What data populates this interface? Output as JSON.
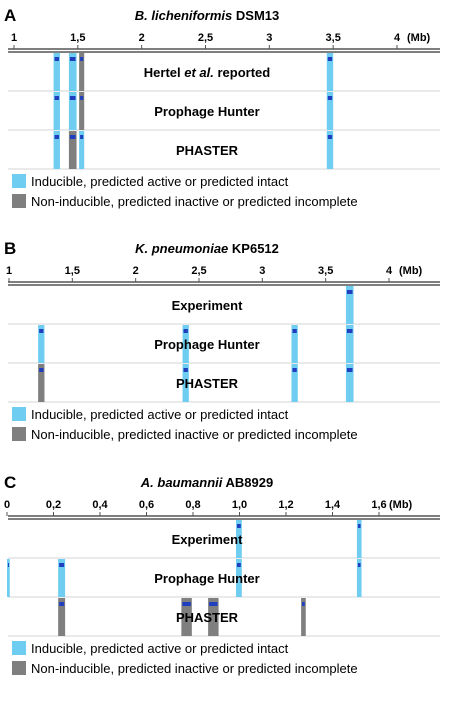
{
  "colors": {
    "inducible": "#6fcdf2",
    "noninducible": "#7f7f7f",
    "marker": "#1f3fbf",
    "axis": "#555555",
    "row_divider": "#d6d6d6"
  },
  "panels": [
    {
      "letter": "A",
      "title_italic": "B. licheniformis",
      "title_rest": " DSM13",
      "unit": "(Mb)",
      "axis": {
        "min": 1,
        "max": 4
      },
      "ticks": [
        {
          "value": 1,
          "label": "1"
        },
        {
          "value": 1.5,
          "label": "1,5"
        },
        {
          "value": 2,
          "label": "2"
        },
        {
          "value": 2.5,
          "label": "2,5"
        },
        {
          "value": 3,
          "label": "3"
        },
        {
          "value": 3.5,
          "label": "3,5"
        },
        {
          "value": 4,
          "label": "4"
        }
      ],
      "rows": [
        {
          "label_parts": [
            {
              "text": "Hertel ",
              "italic": false
            },
            {
              "text": "et al.",
              "italic": true
            },
            {
              "text": " reported",
              "italic": false
            }
          ],
          "bars": [
            {
              "start": 1.31,
              "end": 1.36,
              "type": "inducible"
            },
            {
              "start": 1.43,
              "end": 1.49,
              "type": "inducible"
            },
            {
              "start": 1.51,
              "end": 1.55,
              "type": "noninducible"
            },
            {
              "start": 3.45,
              "end": 3.5,
              "type": "inducible"
            }
          ]
        },
        {
          "label_parts": [
            {
              "text": "Prophage Hunter",
              "italic": false
            }
          ],
          "bars": [
            {
              "start": 1.31,
              "end": 1.36,
              "type": "inducible"
            },
            {
              "start": 1.43,
              "end": 1.49,
              "type": "inducible"
            },
            {
              "start": 1.51,
              "end": 1.55,
              "type": "noninducible"
            },
            {
              "start": 3.45,
              "end": 3.5,
              "type": "inducible"
            }
          ]
        },
        {
          "label_parts": [
            {
              "text": "PHASTER",
              "italic": false
            }
          ],
          "bars": [
            {
              "start": 1.31,
              "end": 1.36,
              "type": "inducible"
            },
            {
              "start": 1.43,
              "end": 1.49,
              "type": "noninducible"
            },
            {
              "start": 1.51,
              "end": 1.55,
              "type": "inducible"
            },
            {
              "start": 3.45,
              "end": 3.5,
              "type": "inducible"
            }
          ]
        }
      ],
      "legend": [
        {
          "type": "inducible",
          "text": "Inducible, predicted active or predicted intact"
        },
        {
          "type": "noninducible",
          "text": "Non-inducible, predicted inactive or predicted incomplete"
        }
      ]
    },
    {
      "letter": "B",
      "title_italic": "K. pneumoniae",
      "title_rest": " KP6512",
      "unit": "(Mb)",
      "axis": {
        "min": 1,
        "max": 4
      },
      "ticks": [
        {
          "value": 1,
          "label": "1"
        },
        {
          "value": 1.5,
          "label": "1,5"
        },
        {
          "value": 2,
          "label": "2"
        },
        {
          "value": 2.5,
          "label": "2,5"
        },
        {
          "value": 3,
          "label": "3"
        },
        {
          "value": 3.5,
          "label": "3,5"
        },
        {
          "value": 4,
          "label": "4"
        }
      ],
      "rows": [
        {
          "label_parts": [
            {
              "text": "Experiment",
              "italic": false
            }
          ],
          "bars": [
            {
              "start": 3.66,
              "end": 3.72,
              "type": "inducible"
            }
          ]
        },
        {
          "label_parts": [
            {
              "text": "Prophage Hunter",
              "italic": false
            }
          ],
          "bars": [
            {
              "start": 1.23,
              "end": 1.28,
              "type": "inducible"
            },
            {
              "start": 2.37,
              "end": 2.42,
              "type": "inducible"
            },
            {
              "start": 3.23,
              "end": 3.28,
              "type": "inducible"
            },
            {
              "start": 3.66,
              "end": 3.72,
              "type": "inducible"
            }
          ]
        },
        {
          "label_parts": [
            {
              "text": "PHASTER",
              "italic": false
            }
          ],
          "bars": [
            {
              "start": 1.23,
              "end": 1.28,
              "type": "noninducible"
            },
            {
              "start": 2.37,
              "end": 2.42,
              "type": "inducible"
            },
            {
              "start": 3.23,
              "end": 3.28,
              "type": "inducible"
            },
            {
              "start": 3.66,
              "end": 3.72,
              "type": "inducible"
            }
          ]
        }
      ],
      "legend": [
        {
          "type": "inducible",
          "text": "Inducible, predicted active or predicted intact"
        },
        {
          "type": "noninducible",
          "text": "Non-inducible, predicted inactive or predicted incomplete"
        }
      ]
    },
    {
      "letter": "C",
      "title_italic": "A. baumannii",
      "title_rest": " AB8929",
      "unit": "(Mb)",
      "axis": {
        "min": 0,
        "max": 1.6
      },
      "ticks": [
        {
          "value": 0,
          "label": "0"
        },
        {
          "value": 0.2,
          "label": "0,2"
        },
        {
          "value": 0.4,
          "label": "0,4"
        },
        {
          "value": 0.6,
          "label": "0,6"
        },
        {
          "value": 0.8,
          "label": "0,8"
        },
        {
          "value": 1.0,
          "label": "1,0"
        },
        {
          "value": 1.2,
          "label": "1,2"
        },
        {
          "value": 1.4,
          "label": "1,4"
        },
        {
          "value": 1.6,
          "label": "1,6"
        }
      ],
      "rows": [
        {
          "label_parts": [
            {
              "text": "Experiment",
              "italic": false
            }
          ],
          "bars": [
            {
              "start": 0.985,
              "end": 1.01,
              "type": "inducible"
            },
            {
              "start": 1.505,
              "end": 1.525,
              "type": "inducible"
            }
          ]
        },
        {
          "label_parts": [
            {
              "text": "Prophage Hunter",
              "italic": false
            }
          ],
          "bars": [
            {
              "start": 0.0,
              "end": 0.012,
              "type": "inducible"
            },
            {
              "start": 0.22,
              "end": 0.25,
              "type": "inducible"
            },
            {
              "start": 0.985,
              "end": 1.01,
              "type": "inducible"
            },
            {
              "start": 1.505,
              "end": 1.525,
              "type": "inducible"
            }
          ]
        },
        {
          "label_parts": [
            {
              "text": "PHASTER",
              "italic": false
            }
          ],
          "bars": [
            {
              "start": 0.22,
              "end": 0.25,
              "type": "noninducible"
            },
            {
              "start": 0.75,
              "end": 0.795,
              "type": "noninducible"
            },
            {
              "start": 0.865,
              "end": 0.91,
              "type": "noninducible"
            },
            {
              "start": 1.265,
              "end": 1.285,
              "type": "noninducible"
            }
          ]
        }
      ],
      "legend": [
        {
          "type": "inducible",
          "text": "Inducible, predicted active or predicted intact"
        },
        {
          "type": "noninducible",
          "text": "Non-inducible, predicted inactive or predicted incomplete"
        }
      ]
    }
  ]
}
